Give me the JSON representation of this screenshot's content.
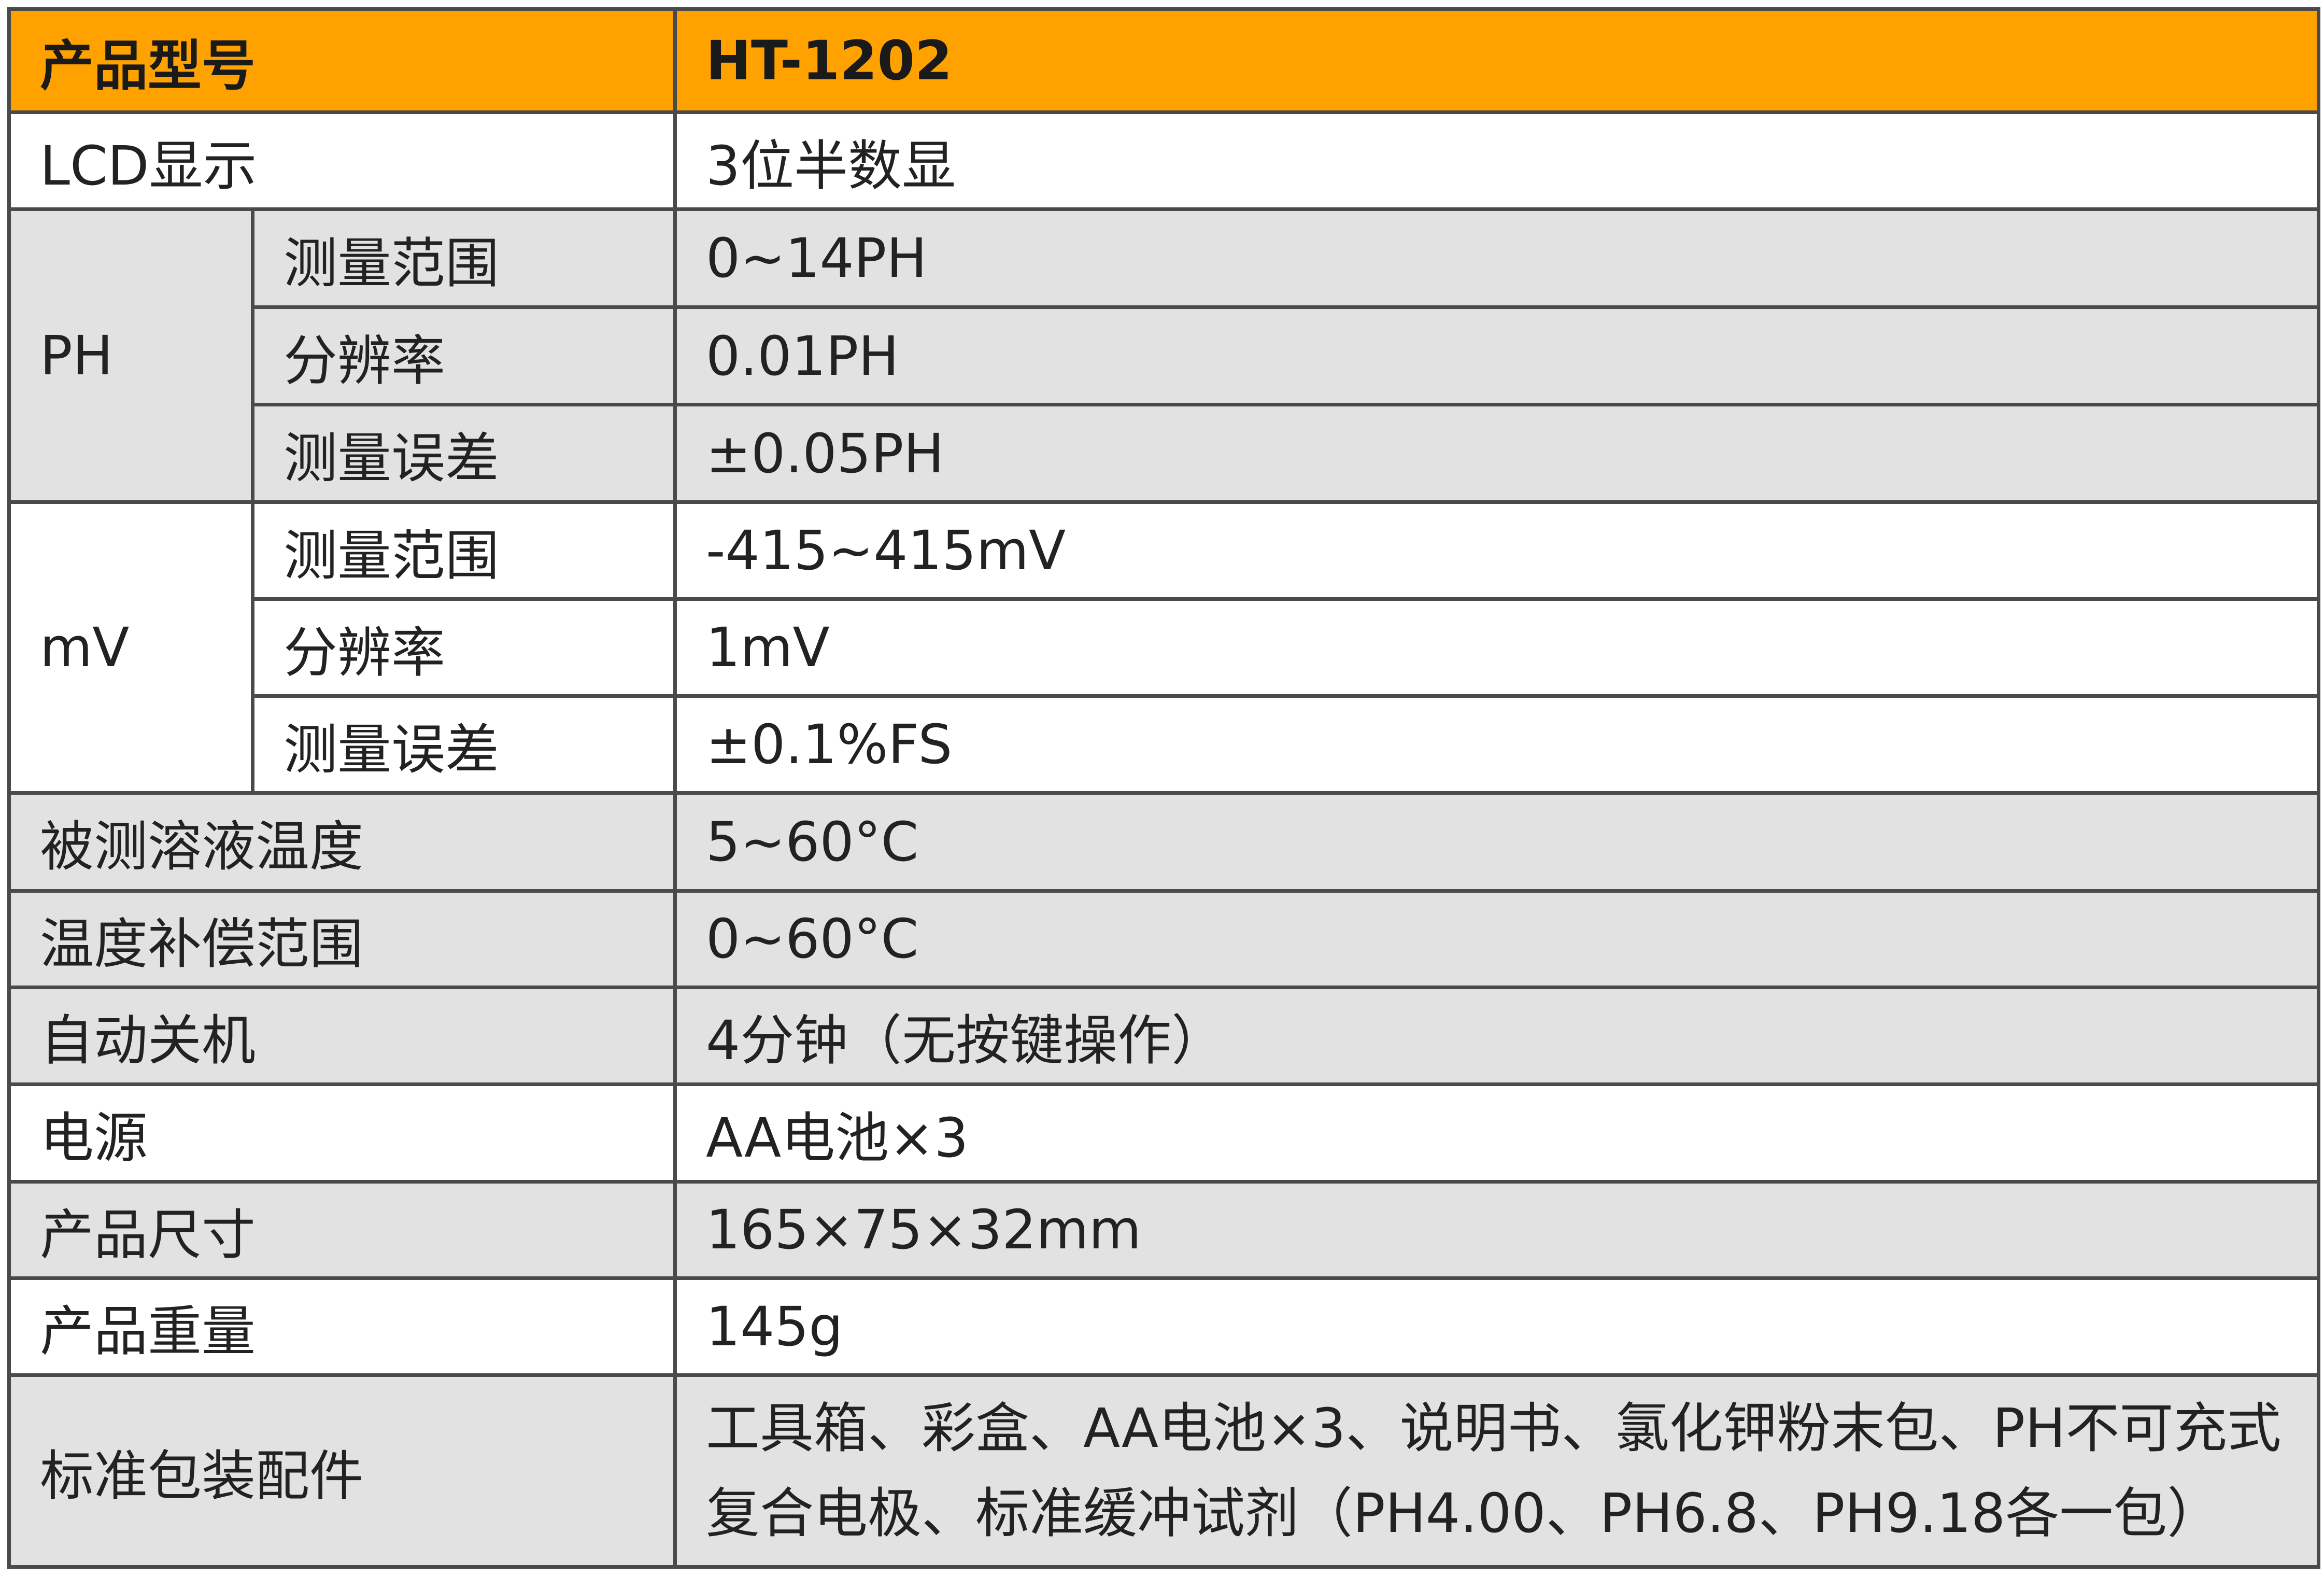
{
  "header": {
    "label": "产品型号",
    "value": "HT-1202"
  },
  "rows": {
    "lcd": {
      "label": "LCD显示",
      "value": "3位半数显"
    },
    "ph": {
      "group": "PH",
      "range": {
        "label": "测量范围",
        "value": "0~14PH"
      },
      "resolution": {
        "label": "分辨率",
        "value": "0.01PH"
      },
      "error": {
        "label": "测量误差",
        "value": "±0.05PH"
      }
    },
    "mv": {
      "group": "mV",
      "range": {
        "label": "测量范围",
        "value": "-415~415mV"
      },
      "resolution": {
        "label": "分辨率",
        "value": "1mV"
      },
      "error": {
        "label": "测量误差",
        "value": "±0.1%FS"
      }
    },
    "solution_temp": {
      "label": "被测溶液温度",
      "value": "5~60°C"
    },
    "temp_comp": {
      "label": "温度补偿范围",
      "value": "0~60°C"
    },
    "auto_off": {
      "label": "自动关机",
      "value": "4分钟（无按键操作）"
    },
    "power": {
      "label": "电源",
      "value": "AA电池×3"
    },
    "size": {
      "label": "产品尺寸",
      "value": "165×75×32mm"
    },
    "weight": {
      "label": "产品重量",
      "value": "145g"
    },
    "accessories": {
      "label": "标准包装配件",
      "value_line1": "工具箱、彩盒、AA电池×3、说明书、氯化钾粉末包、PH不可充式",
      "value_line2": "复合电极、标准缓冲试剂（PH4.00、PH6.8、PH9.18各一包）"
    }
  },
  "colors": {
    "header_background": "#ffa200",
    "stripe_gray": "#e2e2e2",
    "border": "#4a4a4a"
  }
}
